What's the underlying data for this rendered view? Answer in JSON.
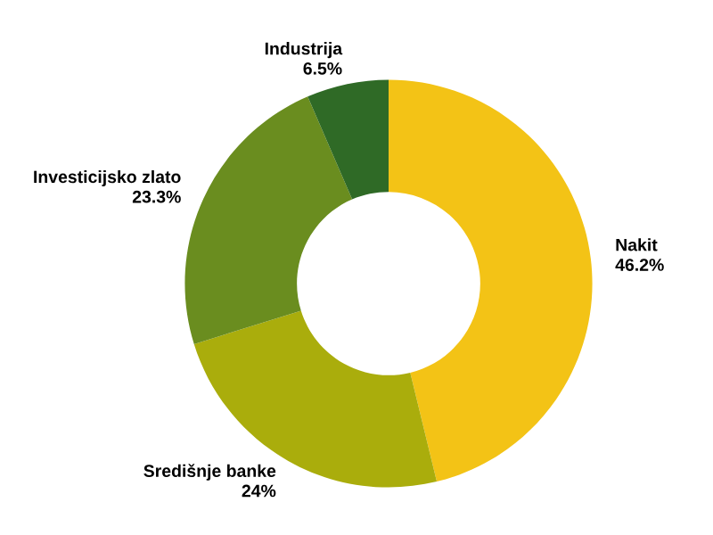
{
  "chart_data": {
    "type": "donut",
    "categories": [
      "Nakit",
      "Središnje banke",
      "Investicijsko zlato",
      "Industrija"
    ],
    "values": [
      46.2,
      24,
      23.3,
      6.5
    ],
    "value_labels": [
      "46.2%",
      "24%",
      "23.3%",
      "6.5%"
    ],
    "colors": [
      "#f3c316",
      "#aaad0c",
      "#6a8d1f",
      "#2f6a26"
    ]
  }
}
